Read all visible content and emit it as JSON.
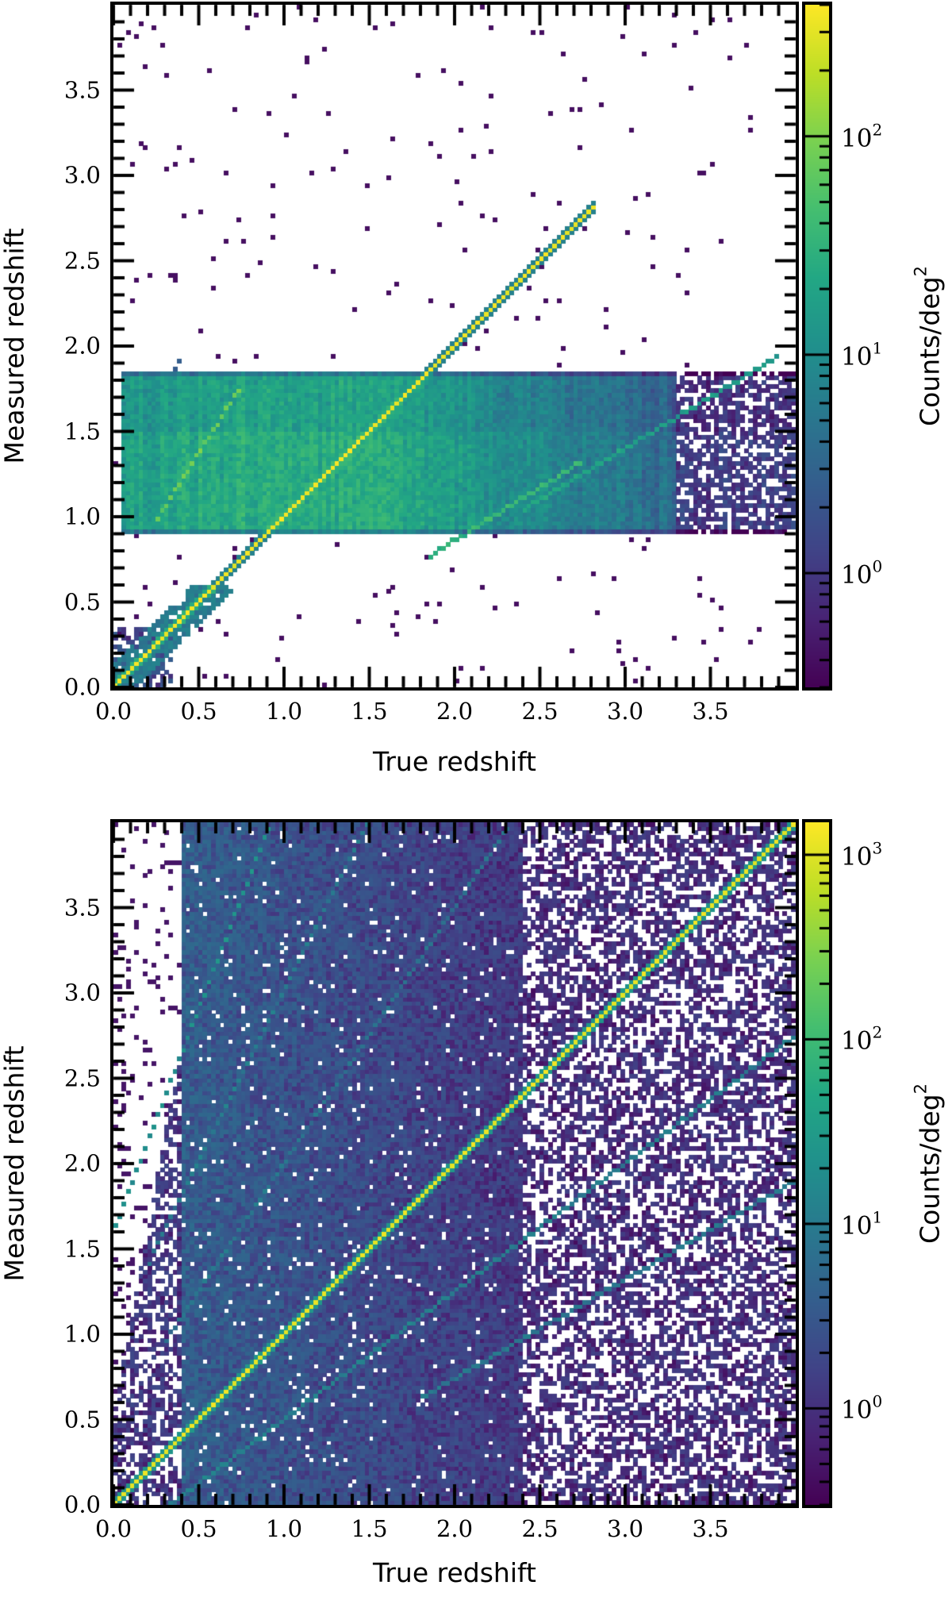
{
  "chart_data": [
    {
      "type": "heatmap",
      "panel": "top",
      "title": "",
      "xlabel": "True redshift",
      "ylabel": "Measured redshift",
      "xlim": [
        0,
        4
      ],
      "ylim": [
        0,
        4
      ],
      "xticks": [
        "0.0",
        "0.5",
        "1.0",
        "1.5",
        "2.0",
        "2.5",
        "3.0",
        "3.5"
      ],
      "yticks": [
        "0.0",
        "0.5",
        "1.0",
        "1.5",
        "2.0",
        "2.5",
        "3.0",
        "3.5"
      ],
      "bins": 160,
      "colormap": "viridis",
      "colorbar": {
        "label": "Counts/deg",
        "label_sup": "2",
        "scale": "log",
        "range": [
          0.3,
          400
        ],
        "ticks": [
          {
            "base": "10",
            "exp": "2",
            "value": 100
          },
          {
            "base": "10",
            "exp": "1",
            "value": 10
          },
          {
            "base": "10",
            "exp": "0",
            "value": 1
          }
        ]
      },
      "features": {
        "measured_band": {
          "zm_min": 0.9,
          "zm_max": 1.83,
          "zt_min": 0.05,
          "zt_dense_max": 3.3,
          "zt_max": 4.0,
          "level": 25
        },
        "diagonal": {
          "zt_range": [
            0.0,
            2.82
          ],
          "peak_level": 350
        },
        "lines": [
          {
            "ratio": 1.58,
            "zt_range": [
              0.25,
              0.75
            ],
            "level": 60
          },
          {
            "ratio": 0.62,
            "zt_range": [
              1.85,
              2.75
            ],
            "level": 30
          },
          {
            "ratio": 0.6,
            "zt_range": [
              2.4,
              3.9
            ],
            "level": 14
          },
          {
            "ratio": 2.1,
            "zt_range": [
              0.3,
              0.4
            ],
            "level": 3
          }
        ],
        "low_z_cluster": {
          "zt_max": 0.7,
          "zm_max": 0.6,
          "level": 4
        },
        "sparse_outliers": 260
      }
    },
    {
      "type": "heatmap",
      "panel": "bottom",
      "title": "",
      "xlabel": "True redshift",
      "ylabel": "Measured redshift",
      "xlim": [
        0,
        4
      ],
      "ylim": [
        0,
        4
      ],
      "xticks": [
        "0.0",
        "0.5",
        "1.0",
        "1.5",
        "2.0",
        "2.5",
        "3.0",
        "3.5"
      ],
      "yticks": [
        "0.0",
        "0.5",
        "1.0",
        "1.5",
        "2.0",
        "2.5",
        "3.0",
        "3.5"
      ],
      "bins": 160,
      "colormap": "viridis",
      "colorbar": {
        "label": "Counts/deg",
        "label_sup": "2",
        "scale": "log",
        "range": [
          0.3,
          1500
        ],
        "ticks": [
          {
            "base": "10",
            "exp": "3",
            "value": 1000
          },
          {
            "base": "10",
            "exp": "2",
            "value": 100
          },
          {
            "base": "10",
            "exp": "1",
            "value": 10
          },
          {
            "base": "10",
            "exp": "0",
            "value": 1
          }
        ]
      },
      "features": {
        "dense_region": {
          "zt_min": 0.4,
          "zt_max": 2.4,
          "level": 4
        },
        "diagonal": {
          "zt_range": [
            0.0,
            4.0
          ],
          "peak_level": 1200
        },
        "lines": [
          {
            "ratio": 2.6,
            "zt_range": [
              0.0,
              1.5
            ],
            "level": 20
          },
          {
            "ratio": 2.0,
            "zt_range": [
              0.2,
              2.25
            ],
            "level": 8
          },
          {
            "ratio": 1.5,
            "zt_range": [
              0.3,
              2.8
            ],
            "level": 6
          },
          {
            "ratio": 0.75,
            "zt_range": [
              0.0,
              4.0
            ],
            "level": 10
          },
          {
            "ratio": 0.58,
            "zt_range": [
              1.8,
              4.0
            ],
            "level": 8
          },
          {
            "ratio": 0.42,
            "zt_range": [
              0.4,
              1.2
            ],
            "level": 10
          }
        ],
        "left_strip": {
          "zt_max": 0.4,
          "level": 1
        },
        "sparse_background": 0.55
      }
    }
  ]
}
